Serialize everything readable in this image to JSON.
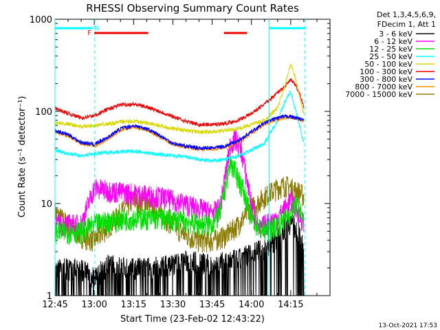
{
  "chart_data": {
    "type": "line",
    "title": "RHESSI Observing Summary Count Rates",
    "xlabel": "Start Time (23-Feb-02 12:43:22)",
    "ylabel": "Count Rate (s⁻¹ detector⁻¹)",
    "yscale": "log",
    "ylim": [
      1,
      1000
    ],
    "xlim_minutes": [
      0,
      105
    ],
    "x_ticks": [
      {
        "label": "12:45",
        "min": 0
      },
      {
        "label": "13:00",
        "min": 15
      },
      {
        "label": "13:15",
        "min": 30
      },
      {
        "label": "13:30",
        "min": 45
      },
      {
        "label": "13:45",
        "min": 60
      },
      {
        "label": "14:00",
        "min": 75
      },
      {
        "label": "14:15",
        "min": 90
      }
    ],
    "y_ticks": [
      {
        "label": "1",
        "v": 1
      },
      {
        "label": "10",
        "v": 10
      },
      {
        "label": "100",
        "v": 100
      },
      {
        "label": "1000",
        "v": 1000
      }
    ],
    "legend_header": [
      "Det 1,3,4,5,6,9,",
      "FDecim 1, Att 1"
    ],
    "legend_placement": "top-right",
    "series": [
      {
        "name": "3 - 6 keV",
        "color": "#000000",
        "x": [
          0,
          10,
          15,
          20,
          30,
          40,
          50,
          55,
          60,
          65,
          70,
          75,
          80,
          85,
          88,
          90,
          92,
          94,
          95
        ],
        "y": [
          2,
          2,
          1.6,
          2.2,
          2,
          2.1,
          2.4,
          2.4,
          2.1,
          2.4,
          2.5,
          3,
          3.2,
          4.5,
          5.5,
          6.5,
          5.5,
          4,
          3
        ]
      },
      {
        "name": "6 - 12 keV",
        "color": "#ff00ff",
        "x": [
          0,
          10,
          15,
          20,
          30,
          40,
          50,
          55,
          60,
          63,
          65,
          67,
          69,
          71,
          73,
          75,
          78,
          80,
          85,
          88,
          90,
          92,
          94,
          95
        ],
        "y": [
          6,
          6,
          15,
          14,
          13,
          12,
          10,
          9,
          8,
          9,
          20,
          45,
          50,
          40,
          20,
          10,
          5,
          6,
          7,
          9,
          11,
          9,
          7,
          6
        ]
      },
      {
        "name": "12 - 25 keV",
        "color": "#00e000",
        "x": [
          0,
          10,
          15,
          20,
          30,
          40,
          50,
          55,
          60,
          63,
          65,
          67,
          69,
          72,
          75,
          78,
          80,
          85,
          88,
          90,
          92,
          94,
          95
        ],
        "y": [
          5,
          5,
          6,
          6.5,
          7,
          7,
          6.5,
          6,
          6,
          8,
          15,
          28,
          22,
          14,
          7,
          5.5,
          5,
          6,
          7,
          8,
          10,
          8,
          6
        ]
      },
      {
        "name": "25 - 50 keV",
        "color": "#00ffff",
        "x": [
          0,
          5,
          10,
          20,
          30,
          40,
          50,
          55,
          60,
          65,
          70,
          75,
          80,
          85,
          88,
          90,
          92,
          94,
          95
        ],
        "y": [
          38,
          35,
          33,
          36,
          37,
          34,
          32,
          30,
          29,
          30,
          33,
          38,
          45,
          80,
          130,
          165,
          100,
          60,
          45
        ]
      },
      {
        "name": "50 - 100 keV",
        "color": "#d8d800",
        "x": [
          0,
          5,
          10,
          15,
          20,
          25,
          30,
          35,
          40,
          45,
          50,
          55,
          60,
          65,
          70,
          75,
          80,
          85,
          88,
          90,
          92,
          94,
          95
        ],
        "y": [
          75,
          73,
          68,
          70,
          73,
          77,
          78,
          75,
          70,
          65,
          62,
          60,
          60,
          62,
          65,
          72,
          80,
          110,
          200,
          330,
          220,
          120,
          95
        ]
      },
      {
        "name": "100 - 300 keV",
        "color": "#ee0000",
        "x": [
          0,
          5,
          10,
          15,
          20,
          25,
          30,
          35,
          40,
          45,
          50,
          55,
          60,
          65,
          70,
          75,
          80,
          85,
          88,
          90,
          92,
          94,
          95
        ],
        "y": [
          108,
          95,
          85,
          90,
          105,
          118,
          120,
          112,
          100,
          88,
          78,
          72,
          72,
          74,
          80,
          95,
          120,
          160,
          190,
          220,
          190,
          140,
          110
        ]
      },
      {
        "name": "300 - 800 keV",
        "color": "#0000ff",
        "x": [
          0,
          5,
          10,
          15,
          20,
          25,
          30,
          35,
          40,
          45,
          50,
          55,
          60,
          65,
          70,
          75,
          80,
          85,
          88,
          90,
          92,
          94,
          95
        ],
        "y": [
          62,
          56,
          46,
          44,
          52,
          65,
          70,
          65,
          55,
          45,
          42,
          40,
          40,
          42,
          48,
          60,
          75,
          85,
          88,
          88,
          85,
          82,
          80
        ]
      },
      {
        "name": "800 - 7000 keV",
        "color": "#ff8c00",
        "x": [
          0,
          5,
          10,
          15,
          20,
          25,
          30,
          35,
          40,
          45,
          50,
          55,
          60,
          65,
          70,
          75,
          80,
          85,
          88,
          90,
          92,
          94,
          95
        ],
        "y": [
          60,
          54,
          45,
          42,
          50,
          62,
          68,
          63,
          53,
          44,
          41,
          39,
          39,
          41,
          46,
          58,
          72,
          82,
          86,
          87,
          84,
          81,
          79
        ]
      },
      {
        "name": "7000 - 15000 keV",
        "color": "#8b7a00",
        "x": [
          0,
          5,
          10,
          15,
          20,
          25,
          30,
          35,
          40,
          45,
          50,
          55,
          60,
          65,
          70,
          75,
          80,
          85,
          88,
          90,
          92,
          94,
          95
        ],
        "y": [
          8,
          6,
          4.5,
          4,
          5.5,
          8,
          11,
          10,
          8,
          6,
          4.5,
          4,
          4,
          4.5,
          6,
          9,
          12,
          15,
          16,
          15,
          14,
          13,
          12
        ]
      }
    ],
    "annotations": [
      {
        "text": "F",
        "color": "#ee0000"
      },
      {
        "text": "N",
        "color": "#00ffff"
      }
    ],
    "flare_bars_min": [
      [
        15,
        35.6
      ],
      [
        64.5,
        73.3
      ]
    ],
    "night_bars_min": [
      [
        0,
        14.5
      ],
      [
        81.8,
        95.6
      ]
    ],
    "vlines_min": [
      {
        "at": 0,
        "style": "solid"
      },
      {
        "at": 15.2,
        "style": "dashed"
      },
      {
        "at": 81.8,
        "style": "solid"
      },
      {
        "at": 95.5,
        "style": "dashed"
      }
    ],
    "footer_date": "13-Oct-2021 17:53"
  }
}
